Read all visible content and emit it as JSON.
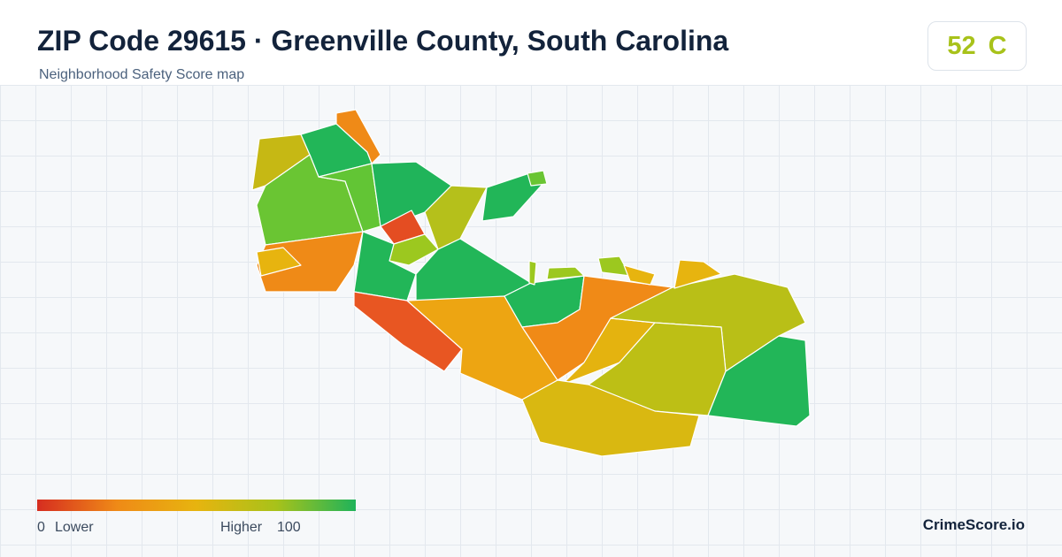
{
  "header": {
    "title": "ZIP Code 29615 · Greenville County, South Carolina",
    "subtitle": "Neighborhood Safety Score map"
  },
  "score": {
    "value": 52,
    "grade": "C"
  },
  "legend": {
    "min": 0,
    "min_label": "Lower",
    "max_label": "Higher",
    "max": 100
  },
  "brand": "CrimeScore.io"
}
